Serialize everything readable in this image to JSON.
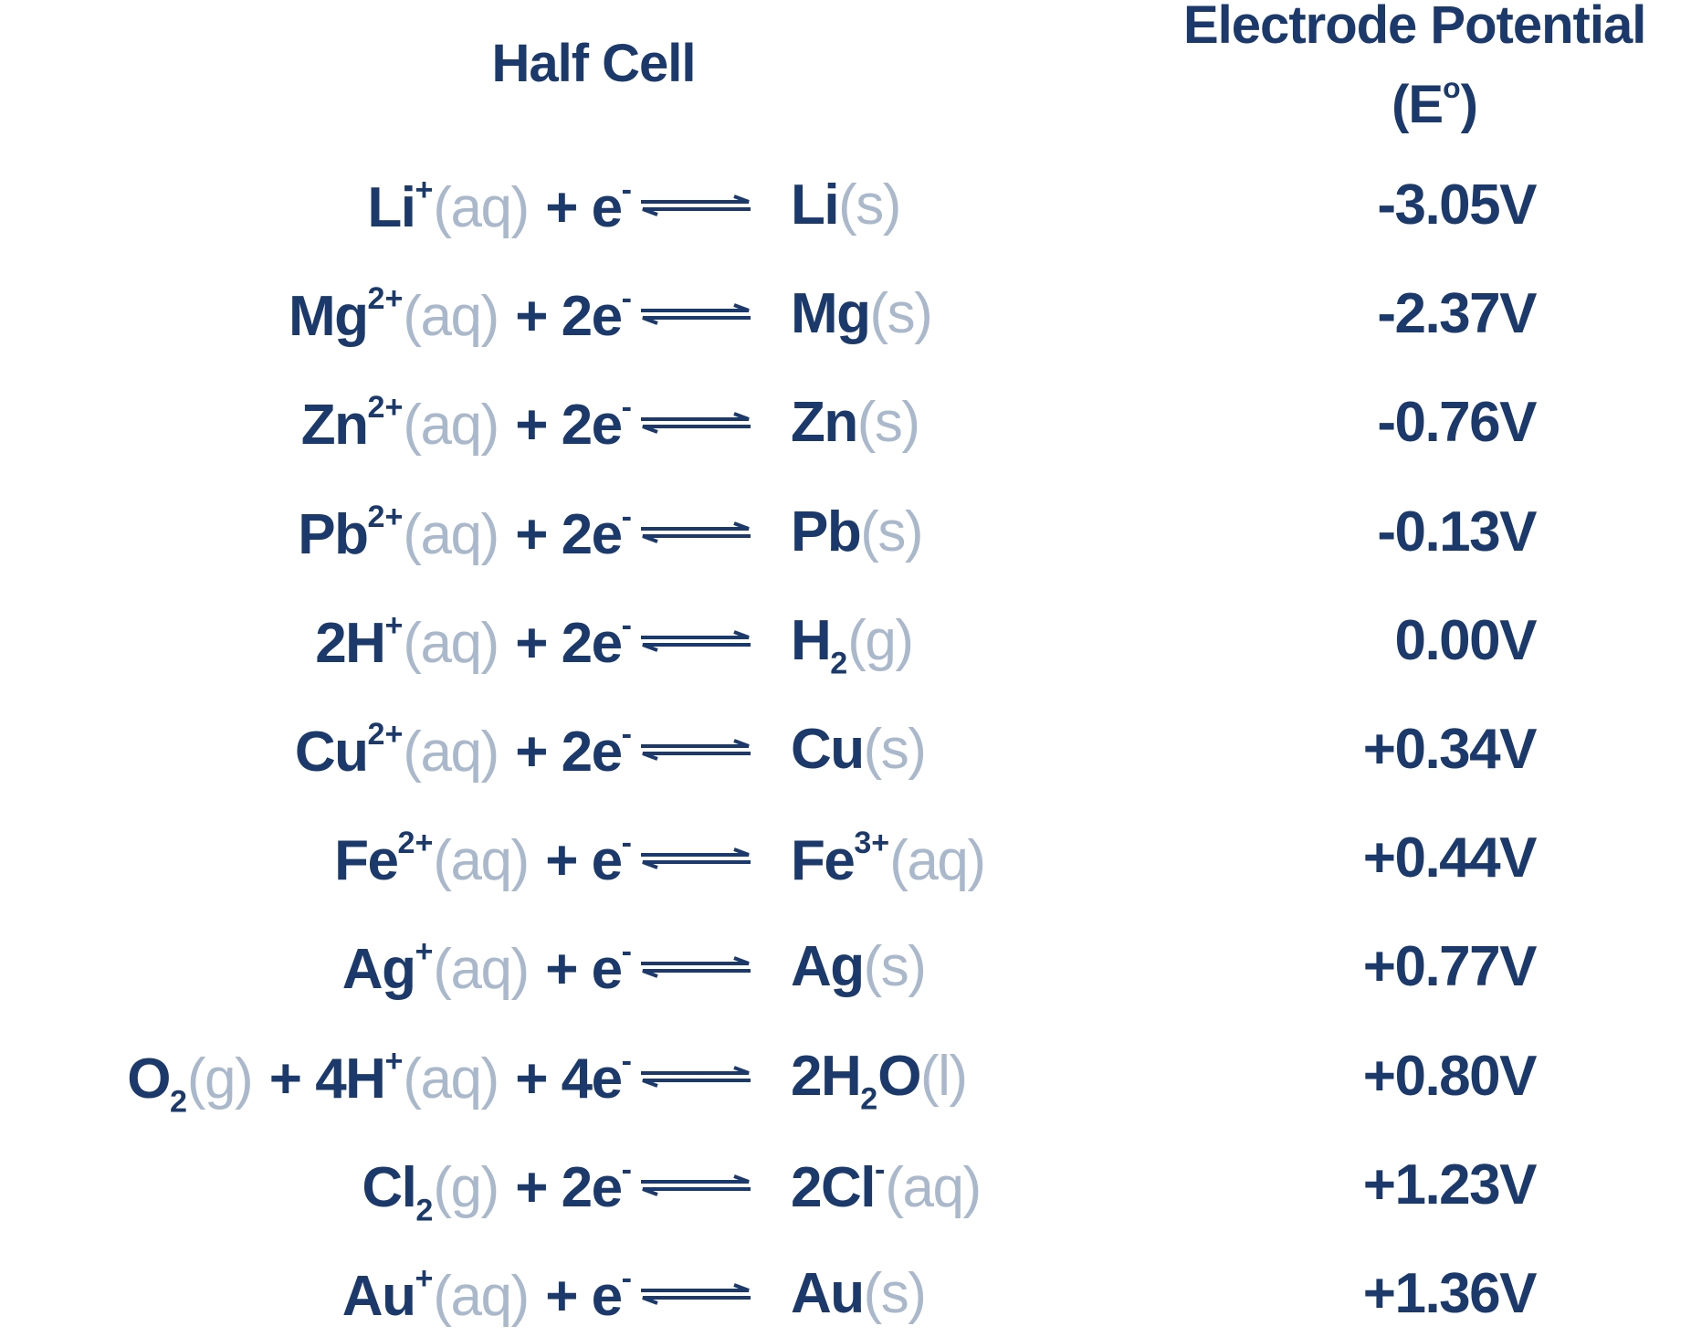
{
  "header": {
    "half_cell": "Half Cell",
    "potential": [
      {
        "text": "Electrode Potential"
      }
    ],
    "potential_unit": [
      {
        "text": "(E"
      },
      {
        "sup": "o"
      },
      {
        "text": ")"
      }
    ]
  },
  "rows": [
    {
      "left": [
        {
          "text": "Li"
        },
        {
          "sup": "+"
        },
        {
          "state": "(aq)"
        },
        {
          "text": "+ e"
        },
        {
          "sup": "-"
        }
      ],
      "right": [
        {
          "text": "Li"
        },
        {
          "state": "(s)"
        }
      ],
      "potential": "-3.05V"
    },
    {
      "left": [
        {
          "text": "Mg"
        },
        {
          "sup": "2+"
        },
        {
          "state": "(aq)"
        },
        {
          "text": "+ 2e"
        },
        {
          "sup": "-"
        }
      ],
      "right": [
        {
          "text": "Mg"
        },
        {
          "state": "(s)"
        }
      ],
      "potential": "-2.37V"
    },
    {
      "left": [
        {
          "text": "Zn"
        },
        {
          "sup": "2+"
        },
        {
          "state": "(aq)"
        },
        {
          "text": "+ 2e"
        },
        {
          "sup": "-"
        }
      ],
      "right": [
        {
          "text": "Zn"
        },
        {
          "state": "(s)"
        }
      ],
      "potential": "-0.76V"
    },
    {
      "left": [
        {
          "text": "Pb"
        },
        {
          "sup": "2+"
        },
        {
          "state": "(aq)"
        },
        {
          "text": "+ 2e"
        },
        {
          "sup": "-"
        }
      ],
      "right": [
        {
          "text": "Pb"
        },
        {
          "state": "(s)"
        }
      ],
      "potential": "-0.13V"
    },
    {
      "left": [
        {
          "text": "2H"
        },
        {
          "sup": "+"
        },
        {
          "state": "(aq)"
        },
        {
          "text": "+ 2e"
        },
        {
          "sup": "-"
        }
      ],
      "right": [
        {
          "text": "H"
        },
        {
          "sub": "2"
        },
        {
          "state": "(g)"
        }
      ],
      "potential": "0.00V"
    },
    {
      "left": [
        {
          "text": "Cu"
        },
        {
          "sup": "2+"
        },
        {
          "state": "(aq)"
        },
        {
          "text": "+ 2e"
        },
        {
          "sup": "-"
        }
      ],
      "right": [
        {
          "text": "Cu"
        },
        {
          "state": "(s)"
        }
      ],
      "potential": "+0.34V"
    },
    {
      "left": [
        {
          "text": "Fe"
        },
        {
          "sup": "2+"
        },
        {
          "state": "(aq)"
        },
        {
          "text": "+ e"
        },
        {
          "sup": "-"
        }
      ],
      "right": [
        {
          "text": "Fe"
        },
        {
          "sup": "3+"
        },
        {
          "state": "(aq)"
        }
      ],
      "potential": "+0.44V"
    },
    {
      "left": [
        {
          "text": "Ag"
        },
        {
          "sup": "+"
        },
        {
          "state": "(aq)"
        },
        {
          "text": "+ e"
        },
        {
          "sup": "-"
        }
      ],
      "right": [
        {
          "text": "Ag"
        },
        {
          "state": "(s)"
        }
      ],
      "potential": "+0.77V"
    },
    {
      "left": [
        {
          "text": "O"
        },
        {
          "sub": "2"
        },
        {
          "state": "(g)"
        },
        {
          "text": "+ 4H"
        },
        {
          "sup": "+"
        },
        {
          "state": "(aq)"
        },
        {
          "text": "+ 4e"
        },
        {
          "sup": "-"
        }
      ],
      "right": [
        {
          "text": "2H"
        },
        {
          "sub": "2"
        },
        {
          "text": "O"
        },
        {
          "state": "(l)"
        }
      ],
      "potential": "+0.80V"
    },
    {
      "left": [
        {
          "text": "Cl"
        },
        {
          "sub": "2"
        },
        {
          "state": "(g)"
        },
        {
          "text": "+ 2e"
        },
        {
          "sup": "-"
        }
      ],
      "right": [
        {
          "text": "2Cl"
        },
        {
          "sup": "-"
        },
        {
          "state": "(aq)"
        }
      ],
      "potential": "+1.23V"
    },
    {
      "left": [
        {
          "text": "Au"
        },
        {
          "sup": "+"
        },
        {
          "state": "(aq)"
        },
        {
          "text": "+ e"
        },
        {
          "sup": "-"
        }
      ],
      "right": [
        {
          "text": "Au"
        },
        {
          "state": "(s)"
        }
      ],
      "potential": "+1.36V"
    }
  ]
}
